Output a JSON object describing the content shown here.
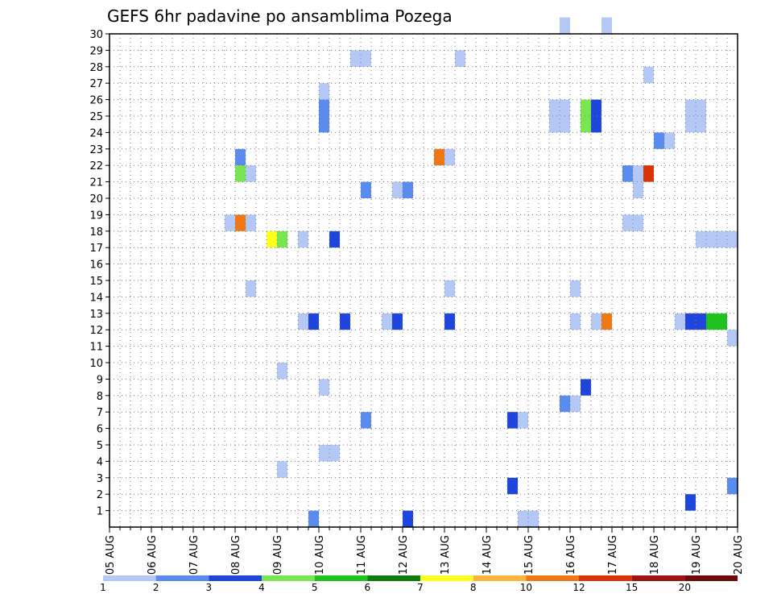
{
  "chart_data": {
    "type": "heatmap",
    "title": "GEFS 6hr padavine po ansamblima Pozega",
    "xlabel": "",
    "ylabel": "",
    "x_tick_labels": [
      "05 AUG",
      "06 AUG",
      "07 AUG",
      "08 AUG",
      "09 AUG",
      "10 AUG",
      "11 AUG",
      "12 AUG",
      "13 AUG",
      "14 AUG",
      "15 AUG",
      "16 AUG",
      "17 AUG",
      "18 AUG",
      "19 AUG",
      "20 AUG"
    ],
    "y_tick_labels": [
      "1",
      "2",
      "3",
      "4",
      "5",
      "6",
      "7",
      "8",
      "9",
      "10",
      "11",
      "12",
      "13",
      "14",
      "15",
      "16",
      "17",
      "18",
      "19",
      "20",
      "21",
      "22",
      "23",
      "24",
      "25",
      "26",
      "27",
      "28",
      "29",
      "30"
    ],
    "grid": true,
    "colorbar": {
      "levels": [
        "1",
        "2",
        "3",
        "4",
        "5",
        "6",
        "7",
        "8",
        "10",
        "12",
        "15",
        "20"
      ],
      "colors": [
        "#b4c8f5",
        "#5a8cf0",
        "#1e46dc",
        "#78e650",
        "#1ec31e",
        "#0a7d0a",
        "#ffff1e",
        "#ffb43c",
        "#f07814",
        "#dc320a",
        "#a01414",
        "#6e0a0a"
      ]
    },
    "cells": [
      {
        "t": 43,
        "m": 30,
        "c": 1
      },
      {
        "t": 47,
        "m": 30,
        "c": 1
      },
      {
        "t": 23,
        "m": 28,
        "c": 1
      },
      {
        "t": 24,
        "m": 28,
        "c": 1
      },
      {
        "t": 33,
        "m": 28,
        "c": 1
      },
      {
        "t": 51,
        "m": 27,
        "c": 1
      },
      {
        "t": 20,
        "m": 26,
        "c": 1
      },
      {
        "t": 20,
        "m": 25,
        "c": 2
      },
      {
        "t": 42,
        "m": 25,
        "c": 1
      },
      {
        "t": 43,
        "m": 25,
        "c": 1
      },
      {
        "t": 45,
        "m": 25,
        "c": 4
      },
      {
        "t": 46,
        "m": 25,
        "c": 3
      },
      {
        "t": 55,
        "m": 25,
        "c": 1
      },
      {
        "t": 56,
        "m": 25,
        "c": 1
      },
      {
        "t": 20,
        "m": 24,
        "c": 2
      },
      {
        "t": 42,
        "m": 24,
        "c": 1
      },
      {
        "t": 43,
        "m": 24,
        "c": 1
      },
      {
        "t": 45,
        "m": 24,
        "c": 4
      },
      {
        "t": 46,
        "m": 24,
        "c": 3
      },
      {
        "t": 55,
        "m": 24,
        "c": 1
      },
      {
        "t": 56,
        "m": 24,
        "c": 1
      },
      {
        "t": 52,
        "m": 23,
        "c": 2
      },
      {
        "t": 53,
        "m": 23,
        "c": 1
      },
      {
        "t": 12,
        "m": 22,
        "c": 2
      },
      {
        "t": 31,
        "m": 22,
        "c": 9
      },
      {
        "t": 32,
        "m": 22,
        "c": 1
      },
      {
        "t": 12,
        "m": 21,
        "c": 4
      },
      {
        "t": 13,
        "m": 21,
        "c": 1
      },
      {
        "t": 49,
        "m": 21,
        "c": 2
      },
      {
        "t": 50,
        "m": 21,
        "c": 1
      },
      {
        "t": 51,
        "m": 21,
        "c": 10
      },
      {
        "t": 24,
        "m": 20,
        "c": 2
      },
      {
        "t": 27,
        "m": 20,
        "c": 1
      },
      {
        "t": 28,
        "m": 20,
        "c": 2
      },
      {
        "t": 50,
        "m": 20,
        "c": 1
      },
      {
        "t": 11,
        "m": 18,
        "c": 1
      },
      {
        "t": 12,
        "m": 18,
        "c": 9
      },
      {
        "t": 13,
        "m": 18,
        "c": 1
      },
      {
        "t": 49,
        "m": 18,
        "c": 1
      },
      {
        "t": 50,
        "m": 18,
        "c": 1
      },
      {
        "t": 15,
        "m": 17,
        "c": 7
      },
      {
        "t": 16,
        "m": 17,
        "c": 4
      },
      {
        "t": 18,
        "m": 17,
        "c": 1
      },
      {
        "t": 21,
        "m": 17,
        "c": 3
      },
      {
        "t": 56,
        "m": 17,
        "c": 1
      },
      {
        "t": 57,
        "m": 17,
        "c": 1
      },
      {
        "t": 58,
        "m": 17,
        "c": 1
      },
      {
        "t": 59,
        "m": 17,
        "c": 1
      },
      {
        "t": 13,
        "m": 14,
        "c": 1
      },
      {
        "t": 32,
        "m": 14,
        "c": 1
      },
      {
        "t": 44,
        "m": 14,
        "c": 1
      },
      {
        "t": 18,
        "m": 12,
        "c": 1
      },
      {
        "t": 19,
        "m": 12,
        "c": 3
      },
      {
        "t": 22,
        "m": 12,
        "c": 3
      },
      {
        "t": 26,
        "m": 12,
        "c": 1
      },
      {
        "t": 27,
        "m": 12,
        "c": 3
      },
      {
        "t": 32,
        "m": 12,
        "c": 3
      },
      {
        "t": 44,
        "m": 12,
        "c": 1
      },
      {
        "t": 46,
        "m": 12,
        "c": 1
      },
      {
        "t": 47,
        "m": 12,
        "c": 9
      },
      {
        "t": 54,
        "m": 12,
        "c": 1
      },
      {
        "t": 55,
        "m": 12,
        "c": 3
      },
      {
        "t": 56,
        "m": 12,
        "c": 3
      },
      {
        "t": 57,
        "m": 12,
        "c": 5
      },
      {
        "t": 58,
        "m": 12,
        "c": 5
      },
      {
        "t": 59,
        "m": 11,
        "c": 1
      },
      {
        "t": 16,
        "m": 9,
        "c": 1
      },
      {
        "t": 20,
        "m": 8,
        "c": 1
      },
      {
        "t": 45,
        "m": 8,
        "c": 3
      },
      {
        "t": 43,
        "m": 7,
        "c": 2
      },
      {
        "t": 44,
        "m": 7,
        "c": 1
      },
      {
        "t": 24,
        "m": 6,
        "c": 2
      },
      {
        "t": 38,
        "m": 6,
        "c": 3
      },
      {
        "t": 39,
        "m": 6,
        "c": 1
      },
      {
        "t": 20,
        "m": 4,
        "c": 1
      },
      {
        "t": 21,
        "m": 4,
        "c": 1
      },
      {
        "t": 16,
        "m": 3,
        "c": 1
      },
      {
        "t": 38,
        "m": 2,
        "c": 3
      },
      {
        "t": 59,
        "m": 2,
        "c": 2
      },
      {
        "t": 55,
        "m": 1,
        "c": 3
      },
      {
        "t": 19,
        "m": 0,
        "c": 2
      },
      {
        "t": 28,
        "m": 0,
        "c": 3
      },
      {
        "t": 39,
        "m": 0,
        "c": 1
      },
      {
        "t": 40,
        "m": 0,
        "c": 1
      }
    ]
  }
}
